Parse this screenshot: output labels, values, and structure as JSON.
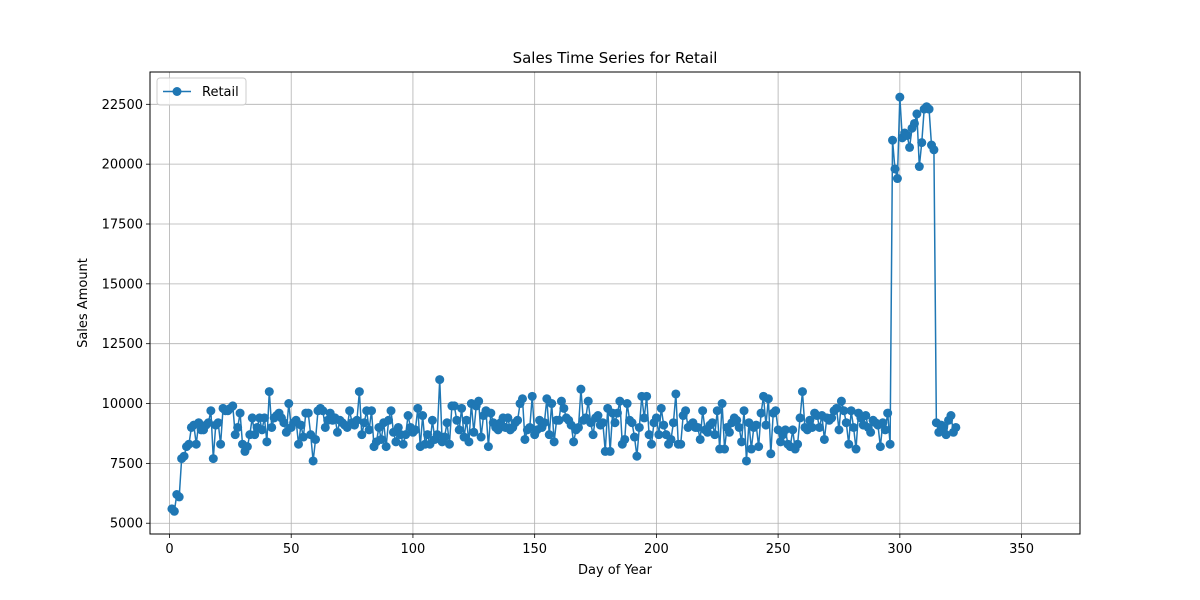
{
  "chart_data": {
    "type": "line",
    "title": "Sales Time Series for Retail",
    "xlabel": "Day of Year",
    "ylabel": "Sales Amount",
    "xlim": [
      -8,
      374
    ],
    "ylim": [
      4550,
      23850
    ],
    "xticks": [
      0,
      50,
      100,
      150,
      200,
      250,
      300,
      350
    ],
    "yticks": [
      5000,
      7500,
      10000,
      12500,
      15000,
      17500,
      20000,
      22500
    ],
    "grid": true,
    "legend_position": "upper left",
    "series": [
      {
        "name": "Retail",
        "color": "#1f77b4",
        "marker": "circle",
        "x_start": 1,
        "x_step": 1,
        "values": [
          5600,
          5500,
          6200,
          6100,
          7700,
          7800,
          8200,
          8300,
          9000,
          9100,
          8300,
          9200,
          8900,
          8900,
          9100,
          9200,
          9700,
          7700,
          9100,
          9200,
          8300,
          9800,
          9700,
          9700,
          9800,
          9900,
          8700,
          9000,
          9600,
          8300,
          8000,
          8200,
          8700,
          9400,
          8700,
          9000,
          9400,
          8900,
          9400,
          8400,
          10500,
          9000,
          9400,
          9500,
          9600,
          9400,
          9200,
          8800,
          10000,
          9000,
          9200,
          9300,
          8300,
          9100,
          8600,
          9600,
          9600,
          8700,
          7600,
          8500,
          9700,
          9800,
          9700,
          9000,
          9300,
          9600,
          9300,
          9400,
          8800,
          9300,
          9200,
          9100,
          9000,
          9700,
          9200,
          9100,
          9300,
          10500,
          8700,
          9200,
          9700,
          8900,
          9700,
          8200,
          8400,
          9000,
          8500,
          9200,
          8200,
          9300,
          9700,
          8800,
          8400,
          9000,
          8700,
          8300,
          8700,
          9500,
          9000,
          8800,
          8900,
          9800,
          8200,
          9500,
          8300,
          8700,
          8300,
          9300,
          8500,
          8700,
          11000,
          8400,
          8600,
          9200,
          8300,
          9900,
          9900,
          9300,
          8900,
          9800,
          8600,
          9300,
          8400,
          10000,
          8800,
          9900,
          10100,
          8600,
          9500,
          9700,
          8200,
          9600,
          9200,
          9000,
          8900,
          9200,
          9400,
          9000,
          9400,
          8900,
          9000,
          9200,
          9300,
          10000,
          10200,
          8500,
          8900,
          9000,
          10300,
          8700,
          8900,
          9300,
          9000,
          9200,
          10200,
          8700,
          10000,
          8400,
          9300,
          9300,
          10100,
          9800,
          9400,
          9300,
          9100,
          8400,
          8900,
          9000,
          10600,
          9300,
          9400,
          10100,
          9200,
          8700,
          9400,
          9500,
          9100,
          9200,
          8000,
          9800,
          8000,
          9600,
          9200,
          9600,
          10100,
          8300,
          8500,
          10000,
          9300,
          9200,
          8600,
          7800,
          9000,
          10300,
          9400,
          10300,
          8700,
          8300,
          9200,
          9400,
          8700,
          9800,
          9100,
          8700,
          8300,
          8500,
          9200,
          10400,
          8300,
          8300,
          9500,
          9700,
          9000,
          9100,
          9200,
          9000,
          9000,
          8500,
          9700,
          8900,
          8800,
          9100,
          9200,
          8700,
          9700,
          8100,
          10000,
          8100,
          9000,
          8800,
          9200,
          9400,
          9300,
          9000,
          8400,
          9700,
          7600,
          9200,
          8100,
          9000,
          9100,
          8200,
          9600,
          10300,
          9100,
          10200,
          7900,
          9600,
          9700,
          8900,
          8400,
          8700,
          8900,
          8300,
          8200,
          8900,
          8100,
          8300,
          9400,
          10500,
          9000,
          8900,
          9300,
          9000,
          9600,
          9500,
          9000,
          9500,
          8500,
          9400,
          9300,
          9400,
          9700,
          9800,
          8900,
          10100,
          9700,
          9200,
          8300,
          9700,
          9000,
          8100,
          9600,
          9400,
          9100,
          9500,
          9000,
          8800,
          9300,
          9200,
          9100,
          8200,
          9200,
          8900,
          9600,
          8300,
          21000,
          19800,
          19400,
          22800,
          21100,
          21300,
          21200,
          20700,
          21500,
          21700,
          22100,
          19900,
          20900,
          22300,
          22400,
          22300,
          20800,
          20600,
          9200,
          8800,
          9100,
          9000,
          8700,
          9300,
          9500,
          8800,
          9000
        ]
      }
    ]
  }
}
